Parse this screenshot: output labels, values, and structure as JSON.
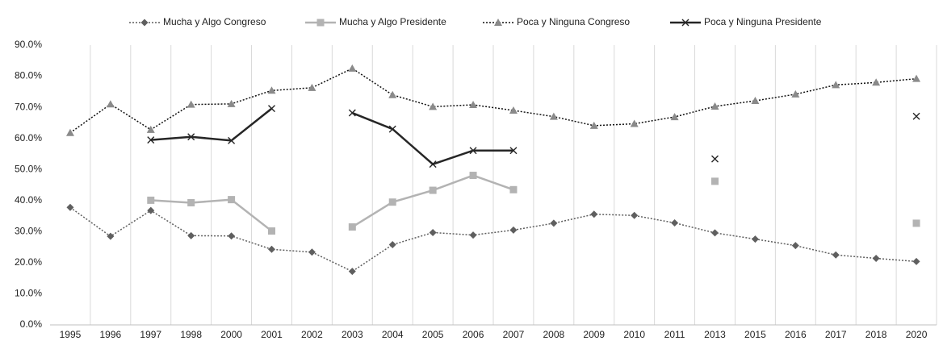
{
  "chart_data": {
    "type": "line",
    "categories": [
      "1995",
      "1996",
      "1997",
      "1998",
      "2000",
      "2001",
      "2002",
      "2003",
      "2004",
      "2005",
      "2006",
      "2007",
      "2008",
      "2009",
      "2010",
      "2011",
      "2013",
      "2015",
      "2016",
      "2017",
      "2018",
      "2020"
    ],
    "series": [
      {
        "name": "Mucha y Algo Congreso",
        "color": "#5f5f5f",
        "line_color": "#5f5f5f",
        "line_style": "dotted",
        "marker": "diamond",
        "values": [
          37.8,
          28.5,
          36.8,
          28.7,
          28.6,
          24.3,
          23.4,
          17.2,
          25.8,
          29.7,
          28.9,
          30.5,
          32.7,
          35.6,
          35.2,
          32.8,
          29.6,
          27.6,
          25.5,
          22.5,
          21.4,
          20.4
        ]
      },
      {
        "name": "Mucha y Algo Presidente",
        "color": "#b3b3b3",
        "line_color": "#b3b3b3",
        "line_style": "solid",
        "marker": "square",
        "values": [
          null,
          null,
          40.1,
          39.3,
          40.3,
          30.2,
          null,
          31.5,
          39.5,
          43.3,
          48.1,
          43.5,
          null,
          null,
          null,
          null,
          46.2,
          null,
          null,
          null,
          null,
          32.7
        ]
      },
      {
        "name": "Poca y Ninguna Congreso",
        "color": "#8a8a8a",
        "line_color": "#111111",
        "line_style": "dotted",
        "marker": "triangle",
        "values": [
          61.8,
          71.0,
          62.8,
          70.9,
          71.1,
          75.4,
          76.3,
          82.5,
          74.0,
          70.2,
          70.8,
          69.0,
          67.0,
          64.1,
          64.7,
          66.9,
          70.3,
          72.1,
          74.2,
          77.2,
          78.0,
          79.2
        ]
      },
      {
        "name": "Poca y Ninguna Presidente",
        "color": "#262626",
        "line_color": "#262626",
        "line_style": "solid",
        "marker": "x",
        "values": [
          null,
          null,
          59.5,
          60.5,
          59.3,
          69.6,
          null,
          68.2,
          63.0,
          51.7,
          56.1,
          56.1,
          null,
          null,
          null,
          null,
          53.4,
          null,
          null,
          null,
          null,
          67.1
        ]
      }
    ],
    "ylim": [
      0,
      90
    ],
    "yticks": [
      {
        "value": 0,
        "label": "0.0%"
      },
      {
        "value": 10,
        "label": "10.0%"
      },
      {
        "value": 20,
        "label": "20.0%"
      },
      {
        "value": 30,
        "label": "30.0%"
      },
      {
        "value": 40,
        "label": "40.0%"
      },
      {
        "value": 50,
        "label": "50.0%"
      },
      {
        "value": 60,
        "label": "60.0%"
      },
      {
        "value": 70,
        "label": "70.0%"
      },
      {
        "value": 80,
        "label": "80.0%"
      },
      {
        "value": 90,
        "label": "90.0%"
      }
    ],
    "grid": "category-separators",
    "legend": "top"
  }
}
